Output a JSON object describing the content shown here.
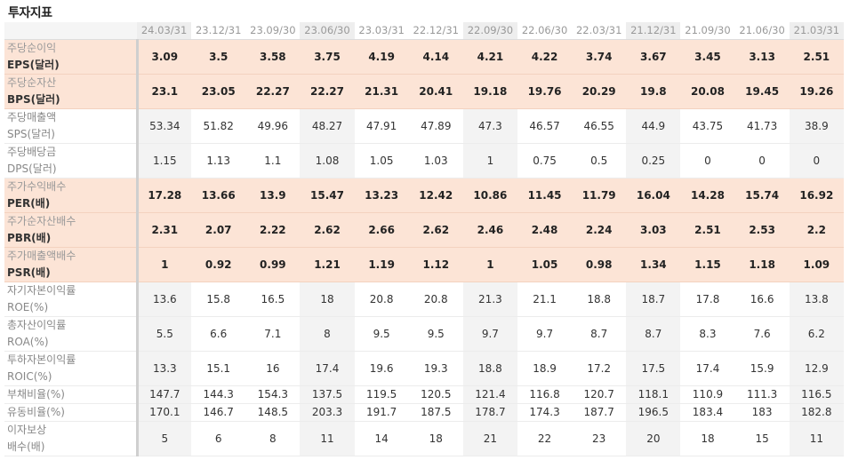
{
  "page_title": "투자지표",
  "periods": [
    "24.03/31",
    "23.12/31",
    "23.09/30",
    "23.06/30",
    "23.03/31",
    "22.12/31",
    "22.09/30",
    "22.06/30",
    "22.03/31",
    "21.12/31",
    "21.09/30",
    "21.06/30",
    "21.03/31"
  ],
  "rows": [
    {
      "label": "주당순이익",
      "code": "EPS(달러)",
      "highlight": true,
      "values": [
        "3.09",
        "3.5",
        "3.58",
        "3.75",
        "4.19",
        "4.14",
        "4.21",
        "4.22",
        "3.74",
        "3.67",
        "3.45",
        "3.13",
        "2.51"
      ]
    },
    {
      "label": "주당순자산",
      "code": "BPS(달러)",
      "highlight": true,
      "values": [
        "23.1",
        "23.05",
        "22.27",
        "22.27",
        "21.31",
        "20.41",
        "19.18",
        "19.76",
        "20.29",
        "19.8",
        "20.08",
        "19.45",
        "19.26"
      ]
    },
    {
      "label": "주당매출액",
      "code": "SPS(달러)",
      "highlight": false,
      "values": [
        "53.34",
        "51.82",
        "49.96",
        "48.27",
        "47.91",
        "47.89",
        "47.3",
        "46.57",
        "46.55",
        "44.9",
        "43.75",
        "41.73",
        "38.9"
      ]
    },
    {
      "label": "주당배당금",
      "code": "DPS(달러)",
      "highlight": false,
      "values": [
        "1.15",
        "1.13",
        "1.1",
        "1.08",
        "1.05",
        "1.03",
        "1",
        "0.75",
        "0.5",
        "0.25",
        "0",
        "0",
        "0"
      ]
    },
    {
      "label": "주가수익배수",
      "code": "PER(배)",
      "highlight": true,
      "values": [
        "17.28",
        "13.66",
        "13.9",
        "15.47",
        "13.23",
        "12.42",
        "10.86",
        "11.45",
        "11.79",
        "16.04",
        "14.28",
        "15.74",
        "16.92"
      ]
    },
    {
      "label": "주가순자산배수",
      "code": "PBR(배)",
      "highlight": true,
      "values": [
        "2.31",
        "2.07",
        "2.22",
        "2.62",
        "2.66",
        "2.62",
        "2.46",
        "2.48",
        "2.24",
        "3.03",
        "2.51",
        "2.53",
        "2.2"
      ]
    },
    {
      "label": "주가매출액배수",
      "code": "PSR(배)",
      "highlight": true,
      "values": [
        "1",
        "0.92",
        "0.99",
        "1.21",
        "1.19",
        "1.12",
        "1",
        "1.05",
        "0.98",
        "1.34",
        "1.15",
        "1.18",
        "1.09"
      ]
    },
    {
      "label": "자기자본이익률",
      "code": "ROE(%)",
      "highlight": false,
      "values": [
        "13.6",
        "15.8",
        "16.5",
        "18",
        "20.8",
        "20.8",
        "21.3",
        "21.1",
        "18.8",
        "18.7",
        "17.8",
        "16.6",
        "13.8"
      ]
    },
    {
      "label": "총자산이익률",
      "code": "ROA(%)",
      "highlight": false,
      "values": [
        "5.5",
        "6.6",
        "7.1",
        "8",
        "9.5",
        "9.5",
        "9.7",
        "9.7",
        "8.7",
        "8.7",
        "8.3",
        "7.6",
        "6.2"
      ]
    },
    {
      "label": "투하자본이익률",
      "code": "ROIC(%)",
      "highlight": false,
      "values": [
        "13.3",
        "15.1",
        "16",
        "17.4",
        "19.6",
        "19.3",
        "18.8",
        "18.9",
        "17.2",
        "17.5",
        "17.4",
        "15.9",
        "12.9"
      ]
    },
    {
      "label": "부채비율(%)",
      "code": "",
      "highlight": false,
      "values": [
        "147.7",
        "144.3",
        "154.3",
        "137.5",
        "119.5",
        "120.5",
        "121.4",
        "116.8",
        "120.7",
        "118.1",
        "110.9",
        "111.3",
        "116.5"
      ]
    },
    {
      "label": "유동비율(%)",
      "code": "",
      "highlight": false,
      "values": [
        "170.1",
        "146.7",
        "148.5",
        "203.3",
        "191.7",
        "187.5",
        "178.7",
        "174.3",
        "187.7",
        "196.5",
        "183.4",
        "183",
        "182.8"
      ]
    },
    {
      "label": "이자보상",
      "code": "배수(배)",
      "highlight": false,
      "values": [
        "5",
        "6",
        "8",
        "11",
        "14",
        "18",
        "21",
        "22",
        "23",
        "20",
        "18",
        "15",
        "11"
      ]
    }
  ]
}
